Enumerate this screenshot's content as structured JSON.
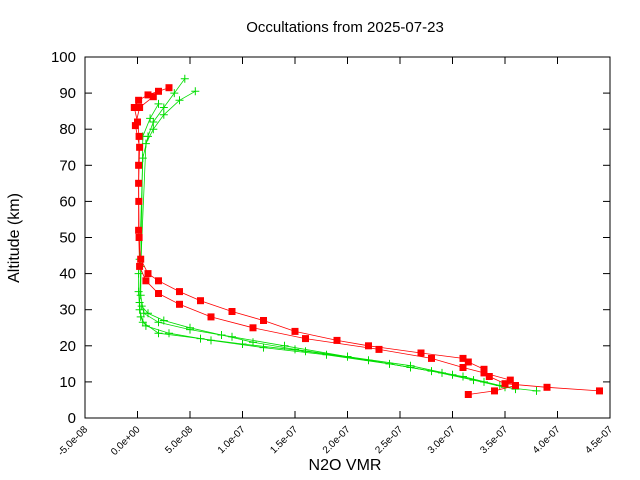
{
  "chart_data": {
    "type": "line",
    "title": "Occultations from 2025-07-23",
    "xlabel": "N2O VMR",
    "ylabel": "Altitude (km)",
    "xlim": [
      -5e-08,
      4.5e-07
    ],
    "ylim": [
      0,
      100
    ],
    "xticks": [
      "-5.0e-08",
      "0.0e+00",
      "5.0e-08",
      "1.0e-07",
      "1.5e-07",
      "2.0e-07",
      "2.5e-07",
      "3.0e-07",
      "3.5e-07",
      "4.0e-07",
      "4.5e-07"
    ],
    "xtick_values": [
      -5e-08,
      0,
      5e-08,
      1e-07,
      1.5e-07,
      2e-07,
      2.5e-07,
      3e-07,
      3.5e-07,
      4e-07,
      4.5e-07
    ],
    "yticks": [
      "0",
      "10",
      "20",
      "30",
      "40",
      "50",
      "60",
      "70",
      "80",
      "90",
      "100"
    ],
    "ytick_values": [
      0,
      10,
      20,
      30,
      40,
      50,
      60,
      70,
      80,
      90,
      100
    ],
    "grid": false,
    "legend": "none",
    "colors": {
      "red": "#ff0000",
      "green": "#00dd00"
    },
    "series": [
      {
        "color": "#ff0000",
        "marker": "square",
        "x": [
          4.4e-07,
          3.9e-07,
          3.5e-07,
          3.35e-07,
          3.3e-07,
          3.15e-07,
          3.1e-07,
          2.7e-07,
          2.2e-07,
          1.9e-07,
          1.5e-07,
          1.2e-07,
          9e-08,
          6e-08,
          4e-08,
          2e-08,
          1e-08,
          3e-09,
          1.5e-09,
          1.2e-09,
          1e-09,
          1.5e-09,
          0.0,
          -3e-09,
          1e-09,
          1e-08,
          2e-08,
          3e-08
        ],
        "y": [
          7.5,
          8.5,
          9.5,
          11.5,
          13.5,
          15.5,
          16.5,
          18,
          20,
          21.5,
          24,
          27,
          29.5,
          32.5,
          35,
          38,
          40,
          44,
          50,
          60,
          70,
          78,
          82,
          86,
          88,
          89.5,
          90.5,
          91.5
        ]
      },
      {
        "color": "#ff0000",
        "marker": "square",
        "x": [
          3.15e-07,
          3.4e-07,
          3.6e-07,
          3.55e-07,
          3.3e-07,
          3.1e-07,
          2.8e-07,
          2.3e-07,
          1.6e-07,
          1.1e-07,
          7e-08,
          4e-08,
          2e-08,
          8e-09,
          2e-09,
          1e-09,
          1e-09,
          2e-09,
          -2e-09,
          2e-09,
          1.5e-08
        ],
        "y": [
          6.5,
          7.5,
          9.0,
          10.5,
          12.5,
          14.0,
          16.5,
          19.0,
          22.0,
          25.0,
          28.0,
          31.5,
          34.5,
          38.0,
          42.0,
          52.0,
          65.0,
          75.0,
          81.0,
          86.0,
          89.0
        ]
      },
      {
        "color": "#00dd00",
        "marker": "plus",
        "x": [
          3.8e-07,
          3.5e-07,
          3.2e-07,
          2.8e-07,
          2.2e-07,
          1.6e-07,
          1e-07,
          6e-08,
          2e-08,
          5e-09,
          2e-09,
          1e-09,
          1e-09,
          2e-09,
          5e-09,
          1e-08,
          1.5e-08,
          2.5e-08,
          3.5e-08,
          4.5e-08
        ],
        "y": [
          7.5,
          8.5,
          10.5,
          13.0,
          16.0,
          18.5,
          20.5,
          22.0,
          23.5,
          26.5,
          30.0,
          35.0,
          40.0,
          44.0,
          72.0,
          78.0,
          82.0,
          86.0,
          90.0,
          94.0
        ]
      },
      {
        "color": "#00dd00",
        "marker": "plus",
        "x": [
          3.6e-07,
          3.3e-07,
          2.9e-07,
          2.4e-07,
          1.8e-07,
          1.2e-07,
          7e-08,
          3e-08,
          8e-09,
          3e-09,
          2e-09,
          3e-09,
          8e-09,
          1.5e-08,
          2.5e-08,
          4e-08,
          5.5e-08
        ],
        "y": [
          8.0,
          10.0,
          12.5,
          15.0,
          17.5,
          19.5,
          21.5,
          23.5,
          25.5,
          28.0,
          32.0,
          42.0,
          76.0,
          80.0,
          84.0,
          88.0,
          90.5
        ]
      },
      {
        "color": "#00dd00",
        "marker": "plus",
        "x": [
          3.45e-07,
          3.1e-07,
          2.6e-07,
          2e-07,
          1.4e-07,
          9e-08,
          5e-08,
          2e-08,
          6e-09,
          3e-09,
          5e-09,
          1.2e-08,
          2e-08
        ],
        "y": [
          9.0,
          11.5,
          14.0,
          17.0,
          20.0,
          22.5,
          24.5,
          26.5,
          29.0,
          34.0,
          78.0,
          83.0,
          87.0
        ]
      },
      {
        "color": "#00dd00",
        "marker": "plus",
        "x": [
          3e-07,
          2.6e-07,
          2e-07,
          1.5e-07,
          1.1e-07,
          8e-08,
          5e-08,
          2.5e-08,
          1e-08,
          4e-09
        ],
        "y": [
          12.0,
          14.5,
          17.0,
          19.0,
          21.0,
          23.0,
          25.0,
          27.0,
          29.0,
          31.0
        ]
      }
    ]
  }
}
